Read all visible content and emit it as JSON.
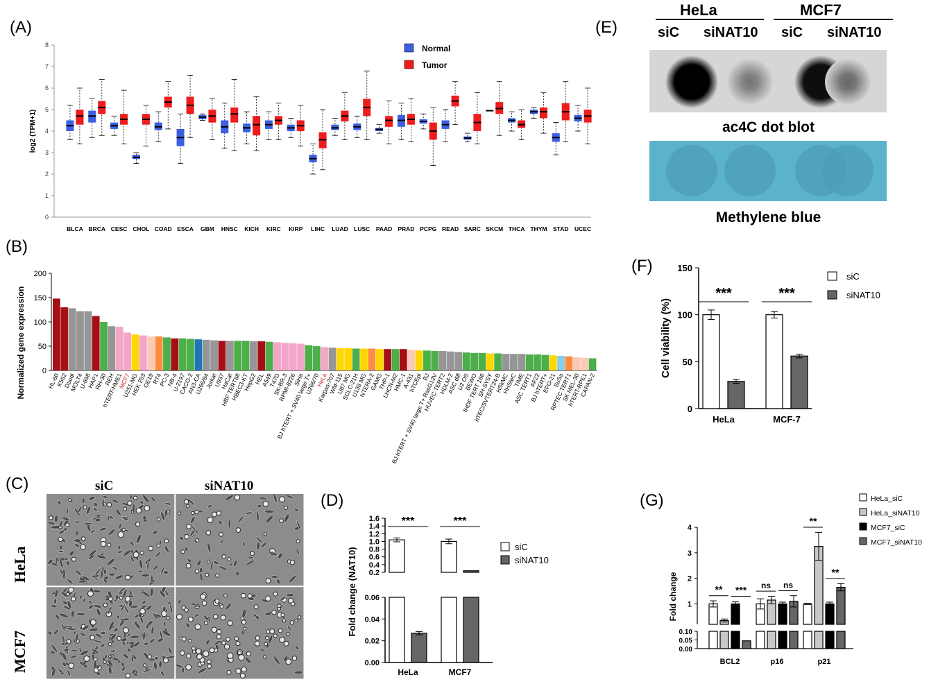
{
  "panels": {
    "A": {
      "label": "(A)"
    },
    "B": {
      "label": "(B)"
    },
    "C": {
      "label": "(C)"
    },
    "D": {
      "label": "(D)"
    },
    "E": {
      "label": "(E)"
    },
    "F": {
      "label": "(F)"
    },
    "G": {
      "label": "(G)"
    }
  },
  "microscopy": {
    "col_labels": [
      "siC",
      "siNAT10"
    ],
    "row_labels": [
      "HeLa",
      "MCF7"
    ]
  },
  "dot_blot": {
    "groups": [
      "HeLa",
      "MCF7"
    ],
    "lanes": [
      "siC",
      "siNAT10",
      "siC",
      "siNAT10"
    ],
    "blot_caption": "ac4C dot blot",
    "stain_caption": "Methylene blue",
    "dot_intensity": [
      1.0,
      0.55,
      0.95,
      0.6
    ]
  },
  "chart_data": [
    {
      "id": "A",
      "type": "box",
      "ylabel": "log2 (TPM+1)",
      "ylim": [
        0,
        8
      ],
      "yticks": [
        "0",
        "1",
        "2",
        "3",
        "4",
        "5",
        "6",
        "7",
        "8"
      ],
      "legend": [
        "Normal",
        "Tumor"
      ],
      "legend_placement": "top-center",
      "colors": {
        "Normal": "#3b5fe0",
        "Tumor": "#ee1c1c"
      },
      "categories": [
        "BLCA",
        "BRCA",
        "CESC",
        "CHOL",
        "COAD",
        "ESCA",
        "GBM",
        "HNSC",
        "KICH",
        "KIRC",
        "KIRP",
        "LIHC",
        "LUAD",
        "LUSC",
        "PAAD",
        "PRAD",
        "PCPG",
        "READ",
        "SARC",
        "SKCM",
        "THCA",
        "THYM",
        "STAD",
        "UCEC"
      ],
      "normal": [
        [
          3.6,
          4.0,
          4.25,
          4.5,
          5.2
        ],
        [
          3.7,
          4.4,
          4.7,
          4.95,
          5.5
        ],
        [
          3.8,
          4.1,
          4.25,
          4.4,
          4.7
        ],
        [
          2.5,
          2.7,
          2.78,
          2.9,
          3.0
        ],
        [
          3.5,
          4.05,
          4.2,
          4.4,
          4.9
        ],
        [
          2.5,
          3.3,
          3.7,
          4.1,
          4.8
        ],
        [
          4.5,
          4.55,
          4.65,
          4.75,
          4.8
        ],
        [
          3.2,
          3.9,
          4.2,
          4.5,
          5.3
        ],
        [
          3.4,
          3.95,
          4.15,
          4.35,
          4.9
        ],
        [
          3.6,
          4.1,
          4.3,
          4.5,
          4.9
        ],
        [
          3.7,
          4.0,
          4.15,
          4.3,
          4.6
        ],
        [
          2.0,
          2.55,
          2.72,
          2.9,
          3.4
        ],
        [
          3.8,
          4.05,
          4.15,
          4.3,
          4.6
        ],
        [
          3.7,
          4.05,
          4.2,
          4.35,
          4.7
        ],
        [
          3.9,
          4.0,
          4.08,
          4.15,
          4.3
        ],
        [
          3.6,
          4.2,
          4.5,
          4.75,
          5.3
        ],
        [
          4.1,
          4.35,
          4.45,
          4.55,
          4.8
        ],
        [
          3.5,
          4.1,
          4.3,
          4.5,
          5.0
        ],
        [
          3.5,
          3.6,
          3.68,
          3.75,
          3.9
        ],
        [
          4.95,
          4.95,
          4.95,
          4.95,
          4.95
        ],
        [
          4.0,
          4.4,
          4.5,
          4.6,
          4.9
        ],
        [
          4.6,
          4.8,
          4.9,
          5.0,
          5.1
        ],
        [
          2.9,
          3.5,
          3.7,
          3.9,
          4.4
        ],
        [
          4.0,
          4.45,
          4.6,
          4.75,
          5.2
        ]
      ],
      "tumor": [
        [
          3.4,
          4.3,
          4.7,
          5.0,
          6.0
        ],
        [
          3.8,
          4.8,
          5.1,
          5.4,
          6.4
        ],
        [
          3.4,
          4.3,
          4.55,
          4.8,
          5.9
        ],
        [
          3.3,
          4.3,
          4.55,
          4.8,
          5.2
        ],
        [
          4.1,
          5.1,
          5.35,
          5.6,
          6.3
        ],
        [
          3.7,
          4.8,
          5.2,
          5.6,
          6.6
        ],
        [
          3.6,
          4.4,
          4.7,
          5.0,
          5.5
        ],
        [
          3.1,
          4.4,
          4.8,
          5.1,
          6.4
        ],
        [
          3.1,
          3.8,
          4.3,
          4.7,
          5.6
        ],
        [
          3.6,
          4.3,
          4.5,
          4.7,
          5.3
        ],
        [
          3.3,
          4.0,
          4.25,
          4.5,
          5.2
        ],
        [
          2.2,
          3.2,
          3.6,
          3.95,
          5.0
        ],
        [
          3.6,
          4.45,
          4.7,
          4.95,
          5.8
        ],
        [
          3.6,
          4.7,
          5.1,
          5.5,
          6.8
        ],
        [
          3.4,
          4.2,
          4.5,
          4.7,
          5.4
        ],
        [
          3.5,
          4.3,
          4.55,
          4.8,
          5.5
        ],
        [
          2.4,
          3.6,
          4.0,
          4.4,
          5.1
        ],
        [
          4.3,
          5.15,
          5.4,
          5.65,
          6.3
        ],
        [
          3.4,
          4.0,
          4.4,
          4.8,
          5.8
        ],
        [
          3.8,
          4.8,
          5.05,
          5.35,
          6.3
        ],
        [
          3.6,
          4.15,
          4.3,
          4.5,
          5.0
        ],
        [
          3.9,
          4.6,
          4.9,
          5.1,
          5.8
        ],
        [
          3.5,
          4.5,
          4.9,
          5.3,
          6.3
        ],
        [
          3.4,
          4.4,
          4.7,
          5.0,
          6.0
        ]
      ]
    },
    {
      "id": "B",
      "type": "bar",
      "ylabel": "Normalized gene expression",
      "ylim": [
        0,
        200
      ],
      "yticks": [
        "0",
        "50",
        "100",
        "150",
        "200"
      ],
      "highlight_color": "#d02020",
      "categories": [
        "HL-60",
        "K562",
        "Daudi",
        "MOLT4",
        "U-698",
        "HAP1",
        "RH-30",
        "REH",
        "hTERT-HME1",
        "MCF7",
        "U251-MG",
        "HEK 293",
        "OE19",
        "RT4",
        "PC-3",
        "NB-4",
        "U-2197",
        "CACO-2",
        "AN3-CA",
        "U266/84",
        "Jurkat",
        "U937",
        "HaCat",
        "HBF TERT88",
        "HBEC3-KT",
        "HepG2",
        "HEL",
        "A549",
        "T47D",
        "SK-BR-3",
        "RPMI-8226",
        "SiHa",
        "BJ hTERT + SV40 large T+",
        "U266/70",
        "HeLa",
        "Karpas-707",
        "WM-115",
        "U87 MG",
        "SCLC-21H",
        "U138 MG",
        "NTERA-2",
        "GAMG",
        "THP-1",
        "LHCN-M2",
        "HMC-1",
        "A-431",
        "hTCEpi",
        "BJ",
        "BJ hTERT + SV40 large T+ RasG12V",
        "HUVEC TERT2",
        "HDLM-2",
        "ASC diff",
        "U2 OS",
        "BEWO",
        "fHDF TERT 166",
        "SH-SY5Y",
        "hTEC/SVTERT24-B",
        "HSkMC",
        "HHSteC",
        "TIME",
        "ASC TERT1",
        "AF22",
        "BJ hTERT+",
        "EFO-21",
        "SuSa",
        "RPTEC TERT1",
        "SK MEL-30",
        "hTERT-RPE1",
        "CAPAN-2"
      ],
      "highlighted": [
        "MCF7",
        "HeLa"
      ],
      "values": [
        148,
        130,
        128,
        122,
        122,
        112,
        100,
        91,
        90,
        78,
        74,
        72,
        70,
        70,
        68,
        66,
        66,
        65,
        64,
        63,
        62,
        61,
        61,
        61,
        61,
        60,
        60,
        59,
        58,
        57,
        56,
        55,
        52,
        50,
        48,
        47,
        46,
        46,
        45,
        45,
        45,
        44,
        44,
        44,
        44,
        42,
        41,
        41,
        40,
        40,
        39,
        38,
        37,
        36,
        36,
        35,
        35,
        34,
        34,
        34,
        33,
        33,
        32,
        31,
        30,
        29,
        27,
        26,
        25
      ],
      "colors": [
        "#a50f15",
        "#a50f15",
        "#969696",
        "#969696",
        "#969696",
        "#a50f15",
        "#4daf4a",
        "#969696",
        "#f4a6c8",
        "#f4a6c8",
        "#ffd700",
        "#f4a6c8",
        "#fbc9b5",
        "#fd8d3c",
        "#4daf4a",
        "#a50f15",
        "#4daf4a",
        "#4daf4a",
        "#1f77b4",
        "#969696",
        "#969696",
        "#a50f15",
        "#969696",
        "#4daf4a",
        "#4daf4a",
        "#969696",
        "#a50f15",
        "#4daf4a",
        "#f4a6c8",
        "#f4a6c8",
        "#f4a6c8",
        "#f4a6c8",
        "#4daf4a",
        "#4daf4a",
        "#f4a6c8",
        "#969696",
        "#ffd700",
        "#ffd700",
        "#4daf4a",
        "#ffd700",
        "#fd8d3c",
        "#ffd700",
        "#a50f15",
        "#4daf4a",
        "#a50f15",
        "#fbc9b5",
        "#ffd700",
        "#4daf4a",
        "#4daf4a",
        "#969696",
        "#969696",
        "#969696",
        "#4daf4a",
        "#4daf4a",
        "#4daf4a",
        "#ffd700",
        "#4daf4a",
        "#969696",
        "#969696",
        "#969696",
        "#4daf4a",
        "#4daf4a",
        "#4daf4a",
        "#ffd700",
        "#87ceeb",
        "#fd8d3c",
        "#fbc9b5",
        "#fbc9b5",
        "#4daf4a"
      ]
    },
    {
      "id": "D",
      "type": "bar",
      "ylabel": "Fold change (NAT10)",
      "categories": [
        "HeLa",
        "MCF7"
      ],
      "legend": [
        "siC",
        "siNAT10"
      ],
      "series": [
        {
          "name": "siC",
          "values": [
            1.04,
            1.0
          ],
          "err": [
            0.05,
            0.06
          ]
        },
        {
          "name": "siNAT10",
          "values": [
            0.027,
            0.24
          ],
          "err": [
            0.0015,
            0.01
          ]
        }
      ],
      "broken_axis": {
        "lower": [
          0,
          0.06
        ],
        "upper": [
          0.2,
          1.6
        ]
      },
      "yticks_lower": [
        "0.00",
        "0.02",
        "0.04",
        "0.06"
      ],
      "yticks_upper": [
        "0.2",
        "0.4",
        "0.6",
        "0.8",
        "1.0",
        "1.2",
        "1.4",
        "1.6"
      ],
      "significance": [
        "***",
        "***"
      ]
    },
    {
      "id": "F",
      "type": "bar",
      "ylabel": "Cell viability (%)",
      "ylim": [
        0,
        150
      ],
      "yticks": [
        "0",
        "50",
        "100",
        "150"
      ],
      "categories": [
        "HeLa",
        "MCF-7"
      ],
      "legend": [
        "siC",
        "siNAT10"
      ],
      "series": [
        {
          "name": "siC",
          "values": [
            100,
            100
          ],
          "err": [
            5,
            3.5
          ]
        },
        {
          "name": "siNAT10",
          "values": [
            29,
            56
          ],
          "err": [
            2,
            2
          ]
        }
      ],
      "significance": [
        "***",
        "***"
      ]
    },
    {
      "id": "G",
      "type": "bar",
      "ylabel": "Fold change",
      "categories": [
        "BCL2",
        "p16",
        "p21"
      ],
      "legend": [
        "HeLa_siC",
        "HeLa_siNAT10",
        "MCF7_siC",
        "MCF7_siNAT10"
      ],
      "series": [
        {
          "name": "HeLa_siC",
          "values": [
            1.0,
            1.0,
            1.0
          ],
          "err": [
            0.12,
            0.2,
            0.02
          ]
        },
        {
          "name": "HeLa_siNAT10",
          "values": [
            0.35,
            1.15,
            3.25
          ],
          "err": [
            0.06,
            0.15,
            0.55
          ]
        },
        {
          "name": "MCF7_siC",
          "values": [
            1.0,
            1.0,
            1.0
          ],
          "err": [
            0.08,
            0.07,
            0.07
          ]
        },
        {
          "name": "MCF7_siNAT10",
          "values": [
            0.045,
            1.1,
            1.65
          ],
          "err": [
            0.003,
            0.22,
            0.14
          ]
        }
      ],
      "broken_axis": {
        "lower": [
          0,
          0.1
        ],
        "upper": [
          0.2,
          4
        ]
      },
      "yticks_lower": [
        "0.00",
        "0.05",
        "0.10"
      ],
      "yticks_upper": [
        "1",
        "2",
        "3",
        "4"
      ],
      "significance": [
        {
          "label": "**",
          "pair": "BCL2 HeLa"
        },
        {
          "label": "***",
          "pair": "BCL2 MCF7"
        },
        {
          "label": "ns",
          "pair": "p16 HeLa"
        },
        {
          "label": "ns",
          "pair": "p16 MCF7"
        },
        {
          "label": "**",
          "pair": "p21 HeLa"
        },
        {
          "label": "**",
          "pair": "p21 MCF7"
        }
      ]
    }
  ]
}
